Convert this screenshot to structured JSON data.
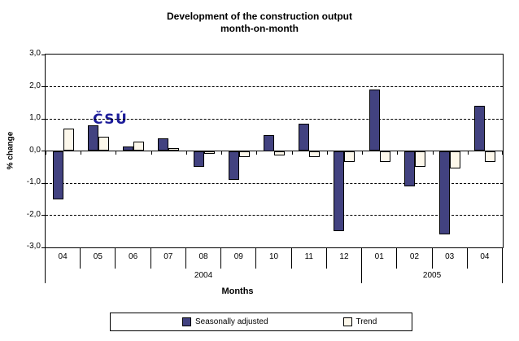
{
  "title": {
    "line1": "Development of the construction output",
    "line2": "month-on-month"
  },
  "logo": {
    "text": "ČSÚ",
    "color": "#1c1c99"
  },
  "chart_data": {
    "type": "bar",
    "title": "Development of the construction output month-on-month",
    "categories": [
      "04",
      "05",
      "06",
      "07",
      "08",
      "09",
      "10",
      "11",
      "12",
      "01",
      "02",
      "03",
      "04"
    ],
    "category_groups": [
      {
        "label": "2004",
        "span": 9
      },
      {
        "label": "2005",
        "span": 4
      }
    ],
    "series": [
      {
        "name": "Seasonally adjusted",
        "color": "#424280",
        "values": [
          -1.5,
          0.8,
          0.15,
          0.4,
          -0.5,
          -0.9,
          0.5,
          0.85,
          -2.5,
          1.9,
          -1.1,
          -2.6,
          1.4
        ]
      },
      {
        "name": "Trend",
        "color": "#fdf8eb",
        "values": [
          0.7,
          0.45,
          0.3,
          0.1,
          -0.1,
          -0.2,
          -0.15,
          -0.2,
          -0.35,
          -0.35,
          -0.5,
          -0.55,
          -0.35
        ]
      }
    ],
    "xlabel": "Months",
    "ylabel": "% change",
    "ylim": [
      -3.0,
      3.0
    ],
    "ytick_step": 1.0,
    "ytick_labels": [
      "3,0",
      "2,0",
      "1,0",
      "0,0",
      "-1,0",
      "-2,0",
      "-3,0"
    ],
    "grid": "horizontal dashed at -2,-1,1,2; solid zero line",
    "legend_position": "bottom",
    "bar_border_color": "#000000"
  }
}
